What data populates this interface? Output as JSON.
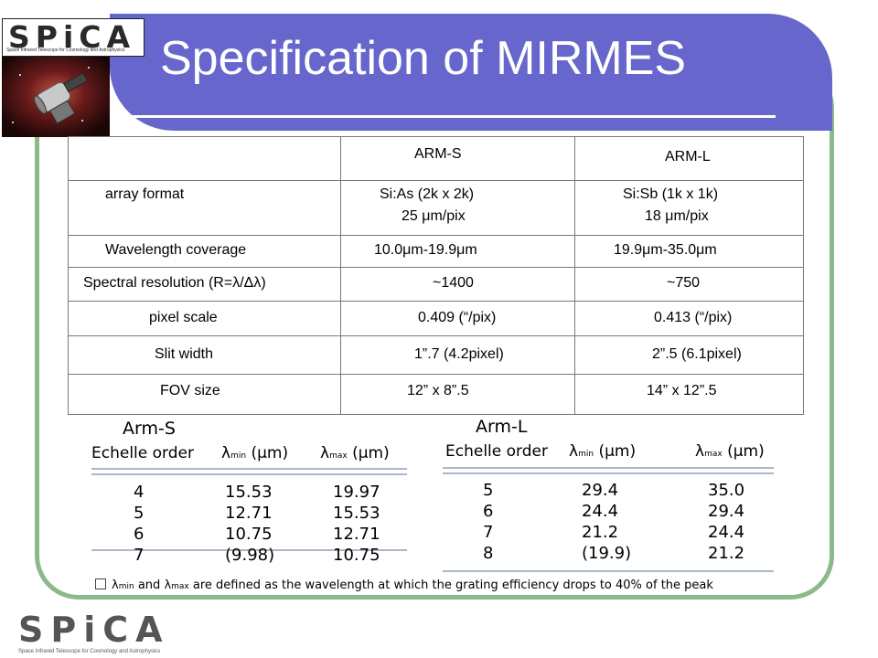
{
  "slide": {
    "title": "Specification of MIRMES",
    "logo_text": "SPiCA",
    "logo_subtitle": "Space Infrared Telescope for Cosmology and Astrophysics"
  },
  "spec_table": {
    "headers": [
      "",
      "ARM-S",
      "ARM-L"
    ],
    "rows": [
      {
        "label": "array format",
        "arm_s": [
          "Si:As (2k x 2k)",
          "25 μm/pix"
        ],
        "arm_l": [
          "Si:Sb (1k x 1k)",
          "18 μm/pix"
        ]
      },
      {
        "label": "Wavelength coverage",
        "arm_s": [
          "10.0μm-19.9μm"
        ],
        "arm_l": [
          "19.9μm-35.0μm"
        ]
      },
      {
        "label": "Spectral resolution (R=λ/Δλ)",
        "arm_s": [
          "~1400"
        ],
        "arm_l": [
          "~750"
        ]
      },
      {
        "label": "pixel scale",
        "arm_s": [
          "0.409 (“/pix)"
        ],
        "arm_l": [
          "0.413 (“/pix)"
        ]
      },
      {
        "label": "Slit width",
        "arm_s": [
          "1”.7 (4.2pixel)"
        ],
        "arm_l": [
          "2”.5 (6.1pixel)"
        ]
      },
      {
        "label": "FOV size",
        "arm_s": [
          "12” x 8”.5"
        ],
        "arm_l": [
          "14” x 12”.5"
        ]
      }
    ]
  },
  "arm_s": {
    "title": "Arm-S",
    "col_order": "Echelle order",
    "col_min": "λmin (μm)",
    "col_max": "λmax (μm)",
    "rows": [
      [
        "4",
        "15.53",
        "19.97"
      ],
      [
        "5",
        "12.71",
        "15.53"
      ],
      [
        "6",
        "10.75",
        "12.71"
      ],
      [
        "7",
        "(9.98)",
        "10.75"
      ]
    ]
  },
  "arm_l": {
    "title": "Arm-L",
    "col_order": "Echelle order",
    "col_min": "λmin (μm)",
    "col_max": "λmax (μm)",
    "rows": [
      [
        "5",
        "29.4",
        "35.0"
      ],
      [
        "6",
        "24.4",
        "29.4"
      ],
      [
        "7",
        "21.2",
        "24.4"
      ],
      [
        "8",
        "(19.9)",
        "21.2"
      ]
    ]
  },
  "footnote": {
    "lambda": "λ",
    "min": "min",
    "and": "and",
    "max": "max",
    "text": "are defined as the wavelength at which the grating efficiency drops to 40% of the peak"
  },
  "colors": {
    "title_bar": "#6666cc",
    "frame": "#8cb98a",
    "rule": "#a9b7c9"
  }
}
